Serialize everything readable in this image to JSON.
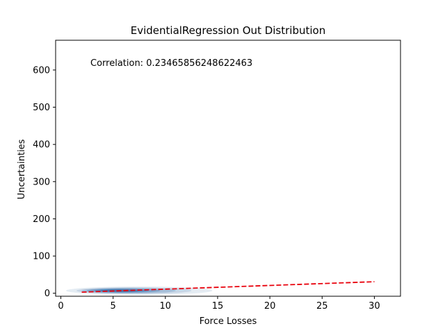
{
  "chart_data": {
    "type": "scatter",
    "title": "EvidentialRegression Out Distribution",
    "xlabel": "Force Losses",
    "ylabel": "Uncertainties",
    "xlim": [
      -0.5,
      32.5
    ],
    "ylim": [
      -8,
      680
    ],
    "xticks": [
      0,
      5,
      10,
      15,
      20,
      25,
      30
    ],
    "yticks": [
      0,
      100,
      200,
      300,
      400,
      500,
      600
    ],
    "grid": false,
    "annotation": "Correlation: 0.23465856248622463",
    "density": {
      "color": "#1f5fa0",
      "levels": [
        {
          "cx": 7.5,
          "cy": 7,
          "rx": 7.0,
          "ry": 11,
          "opacity": 0.12
        },
        {
          "cx": 7.0,
          "cy": 7,
          "rx": 5.5,
          "ry": 9,
          "opacity": 0.15
        },
        {
          "cx": 6.5,
          "cy": 7,
          "rx": 4.5,
          "ry": 7.5,
          "opacity": 0.2
        },
        {
          "cx": 6.0,
          "cy": 7,
          "rx": 3.5,
          "ry": 6,
          "opacity": 0.28
        },
        {
          "cx": 5.8,
          "cy": 7,
          "rx": 2.6,
          "ry": 4.5,
          "opacity": 0.35
        },
        {
          "cx": 5.6,
          "cy": 7,
          "rx": 1.8,
          "ry": 3.2,
          "opacity": 0.45
        }
      ]
    },
    "trend_line": {
      "color": "#e8000b",
      "style": "dashed",
      "points": [
        [
          2,
          3
        ],
        [
          30,
          31
        ]
      ]
    }
  }
}
